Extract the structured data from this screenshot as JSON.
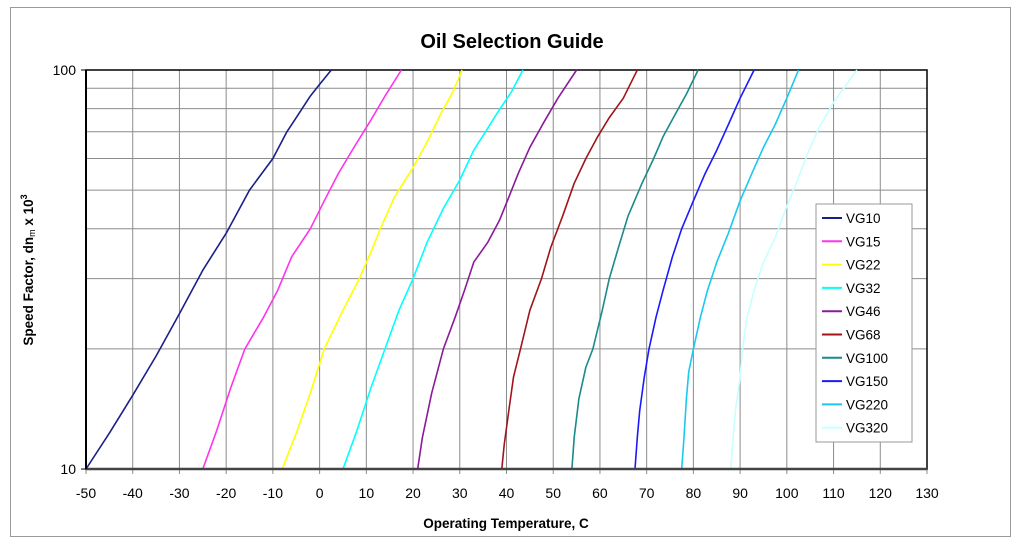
{
  "chart_data": {
    "type": "line",
    "title": "Oil Selection Guide",
    "xlabel": "Operating Temperature, C",
    "ylabel": "Speed Factor, dn_m x 10^3",
    "ylabel_parts": {
      "main": "Speed Factor, dn",
      "sub": "m",
      "mid": " x 10",
      "sup": "3"
    },
    "xlim": [
      -50,
      130
    ],
    "ylim": [
      10,
      100
    ],
    "yscale": "log",
    "grid": true,
    "legend_position": "right-inside",
    "x_ticks": [
      -50,
      -40,
      -30,
      -20,
      -10,
      0,
      10,
      20,
      30,
      40,
      50,
      60,
      70,
      80,
      90,
      100,
      110,
      120,
      130
    ],
    "y_ticks": [
      10,
      100
    ],
    "y_minor_grid": [
      20,
      30,
      40,
      50,
      60,
      70,
      80,
      90
    ],
    "series": [
      {
        "name": "VG10",
        "color": "#1b1f8a",
        "points": [
          [
            -50,
            10
          ],
          [
            -45,
            12.3
          ],
          [
            -40,
            15.3
          ],
          [
            -35,
            19.2
          ],
          [
            -30,
            24.5
          ],
          [
            -25,
            31.5
          ],
          [
            -20,
            39
          ],
          [
            -15,
            50
          ],
          [
            -10,
            60
          ],
          [
            -7,
            70
          ],
          [
            -5,
            76
          ],
          [
            -2,
            86
          ],
          [
            0,
            92
          ],
          [
            2.5,
            100
          ]
        ]
      },
      {
        "name": "VG15",
        "color": "#ff33ee",
        "points": [
          [
            -25,
            10
          ],
          [
            -22,
            12.5
          ],
          [
            -19,
            16
          ],
          [
            -16,
            20
          ],
          [
            -12,
            24
          ],
          [
            -9,
            28
          ],
          [
            -6,
            34
          ],
          [
            -2,
            40
          ],
          [
            1,
            47
          ],
          [
            4,
            55
          ],
          [
            7,
            63
          ],
          [
            11,
            75
          ],
          [
            14,
            86
          ],
          [
            17.5,
            100
          ]
        ]
      },
      {
        "name": "VG22",
        "color": "#ffff00",
        "points": [
          [
            -8,
            10
          ],
          [
            -5,
            12.3
          ],
          [
            -2,
            15.5
          ],
          [
            1,
            20
          ],
          [
            5,
            25
          ],
          [
            8.5,
            30
          ],
          [
            11,
            35
          ],
          [
            13,
            40
          ],
          [
            16,
            48
          ],
          [
            20,
            57
          ],
          [
            23,
            66
          ],
          [
            26,
            78
          ],
          [
            28.5,
            88
          ],
          [
            30.5,
            100
          ]
        ]
      },
      {
        "name": "VG32",
        "color": "#00ffff",
        "points": [
          [
            5,
            10
          ],
          [
            8,
            12.5
          ],
          [
            11,
            16
          ],
          [
            14,
            20
          ],
          [
            17,
            25
          ],
          [
            20,
            30
          ],
          [
            23,
            37
          ],
          [
            26.5,
            45
          ],
          [
            30,
            53
          ],
          [
            33,
            63
          ],
          [
            35.5,
            70
          ],
          [
            38,
            78
          ],
          [
            41,
            88
          ],
          [
            43.5,
            100
          ]
        ]
      },
      {
        "name": "VG46",
        "color": "#8a1a9a",
        "points": [
          [
            21,
            10
          ],
          [
            22,
            12
          ],
          [
            24,
            15.5
          ],
          [
            26.5,
            20
          ],
          [
            29,
            24
          ],
          [
            31,
            28
          ],
          [
            33,
            33
          ],
          [
            36,
            37
          ],
          [
            38.5,
            42
          ],
          [
            40.5,
            48
          ],
          [
            42.5,
            55
          ],
          [
            45,
            64
          ],
          [
            48,
            74
          ],
          [
            51,
            85
          ],
          [
            55,
            100
          ]
        ]
      },
      {
        "name": "VG68",
        "color": "#a0141a",
        "points": [
          [
            39,
            10
          ],
          [
            39.5,
            11.5
          ],
          [
            40.5,
            14
          ],
          [
            41.5,
            17
          ],
          [
            43,
            20
          ],
          [
            45,
            25
          ],
          [
            47.5,
            30
          ],
          [
            49.5,
            36
          ],
          [
            52,
            43
          ],
          [
            54.5,
            52
          ],
          [
            57,
            60
          ],
          [
            59.5,
            68
          ],
          [
            62,
            76
          ],
          [
            65,
            85
          ],
          [
            68,
            100
          ]
        ]
      },
      {
        "name": "VG100",
        "color": "#1a8a8a",
        "points": [
          [
            54,
            10
          ],
          [
            54.5,
            12
          ],
          [
            55.5,
            15
          ],
          [
            57,
            18
          ],
          [
            58.5,
            20
          ],
          [
            60.5,
            25
          ],
          [
            62,
            30
          ],
          [
            64,
            36
          ],
          [
            66,
            43
          ],
          [
            69,
            52
          ],
          [
            71.5,
            60
          ],
          [
            73.5,
            68
          ],
          [
            76,
            77
          ],
          [
            78.5,
            87
          ],
          [
            81,
            100
          ]
        ]
      },
      {
        "name": "VG150",
        "color": "#1a1aff",
        "points": [
          [
            67.5,
            10
          ],
          [
            68,
            12
          ],
          [
            68.5,
            14
          ],
          [
            69.5,
            17
          ],
          [
            70.5,
            20
          ],
          [
            72,
            24
          ],
          [
            73.5,
            28
          ],
          [
            75.5,
            34
          ],
          [
            77.5,
            40
          ],
          [
            80,
            47
          ],
          [
            82.5,
            55
          ],
          [
            85,
            63
          ],
          [
            87.5,
            73
          ],
          [
            90,
            85
          ],
          [
            93,
            100
          ]
        ]
      },
      {
        "name": "VG220",
        "color": "#1ac8f0",
        "points": [
          [
            77.5,
            10
          ],
          [
            78,
            12
          ],
          [
            78.5,
            15
          ],
          [
            79,
            17.5
          ],
          [
            80,
            20
          ],
          [
            81.5,
            24
          ],
          [
            83,
            28
          ],
          [
            85,
            33
          ],
          [
            87.5,
            39
          ],
          [
            90,
            47
          ],
          [
            92.5,
            55
          ],
          [
            95,
            64
          ],
          [
            97.5,
            73
          ],
          [
            100,
            85
          ],
          [
            102.5,
            100
          ]
        ]
      },
      {
        "name": "VG320",
        "color": "#c8ffff",
        "points": [
          [
            88,
            10
          ],
          [
            88.5,
            12
          ],
          [
            89,
            14
          ],
          [
            90,
            17
          ],
          [
            90.5,
            20
          ],
          [
            91.5,
            24
          ],
          [
            93,
            28
          ],
          [
            95,
            33
          ],
          [
            97.5,
            38
          ],
          [
            99.5,
            44
          ],
          [
            102,
            52
          ],
          [
            104.5,
            62
          ],
          [
            107,
            72
          ],
          [
            110,
            83
          ],
          [
            115,
            100
          ]
        ]
      }
    ]
  }
}
